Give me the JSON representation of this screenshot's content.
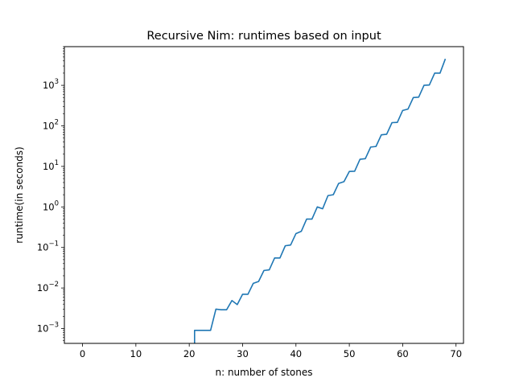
{
  "chart_data": {
    "type": "line",
    "title": "Recursive Nim: runtimes based on input",
    "xlabel": "n: number of stones",
    "ylabel": "runtime(in seconds)",
    "xlim": [
      -3.4,
      71.4
    ],
    "ylim": [
      0.00043,
      9000
    ],
    "yscale": "log",
    "grid": false,
    "line_color": "#1f77b4",
    "x_ticks": [
      {
        "value": 0,
        "label": "0"
      },
      {
        "value": 10,
        "label": "10"
      },
      {
        "value": 20,
        "label": "20"
      },
      {
        "value": 30,
        "label": "30"
      },
      {
        "value": 40,
        "label": "40"
      },
      {
        "value": 50,
        "label": "50"
      },
      {
        "value": 60,
        "label": "60"
      },
      {
        "value": 70,
        "label": "70"
      }
    ],
    "y_ticks": [
      {
        "value": 0.001,
        "base": "10",
        "exp": "−3"
      },
      {
        "value": 0.01,
        "base": "10",
        "exp": "−2"
      },
      {
        "value": 0.1,
        "base": "10",
        "exp": "−1"
      },
      {
        "value": 1,
        "base": "10",
        "exp": "0"
      },
      {
        "value": 10,
        "base": "10",
        "exp": "1"
      },
      {
        "value": 100,
        "base": "10",
        "exp": "2"
      },
      {
        "value": 1000,
        "base": "10",
        "exp": "3"
      }
    ],
    "series": [
      {
        "x": [
          21,
          22,
          23,
          24,
          25,
          26,
          27,
          28,
          29,
          30,
          31,
          32,
          33,
          34,
          35,
          36,
          37,
          38,
          39,
          40,
          41,
          42,
          43,
          44,
          45,
          46,
          47,
          48,
          49,
          50,
          51,
          52,
          53,
          54,
          55,
          56,
          57,
          58,
          59,
          60,
          61,
          62,
          63,
          64,
          65,
          66,
          67,
          68
        ],
        "values": [
          0.0009,
          0.0009,
          0.0009,
          0.0009,
          0.003,
          0.0029,
          0.0029,
          0.0049,
          0.0039,
          0.007,
          0.007,
          0.013,
          0.0145,
          0.027,
          0.028,
          0.055,
          0.055,
          0.11,
          0.115,
          0.22,
          0.25,
          0.5,
          0.5,
          1.0,
          0.9,
          1.9,
          2.0,
          3.8,
          4.2,
          7.5,
          7.6,
          15,
          15.5,
          30,
          31,
          60,
          62,
          120,
          122,
          240,
          260,
          500,
          510,
          1000,
          1020,
          2000,
          2000,
          4500
        ]
      }
    ]
  }
}
